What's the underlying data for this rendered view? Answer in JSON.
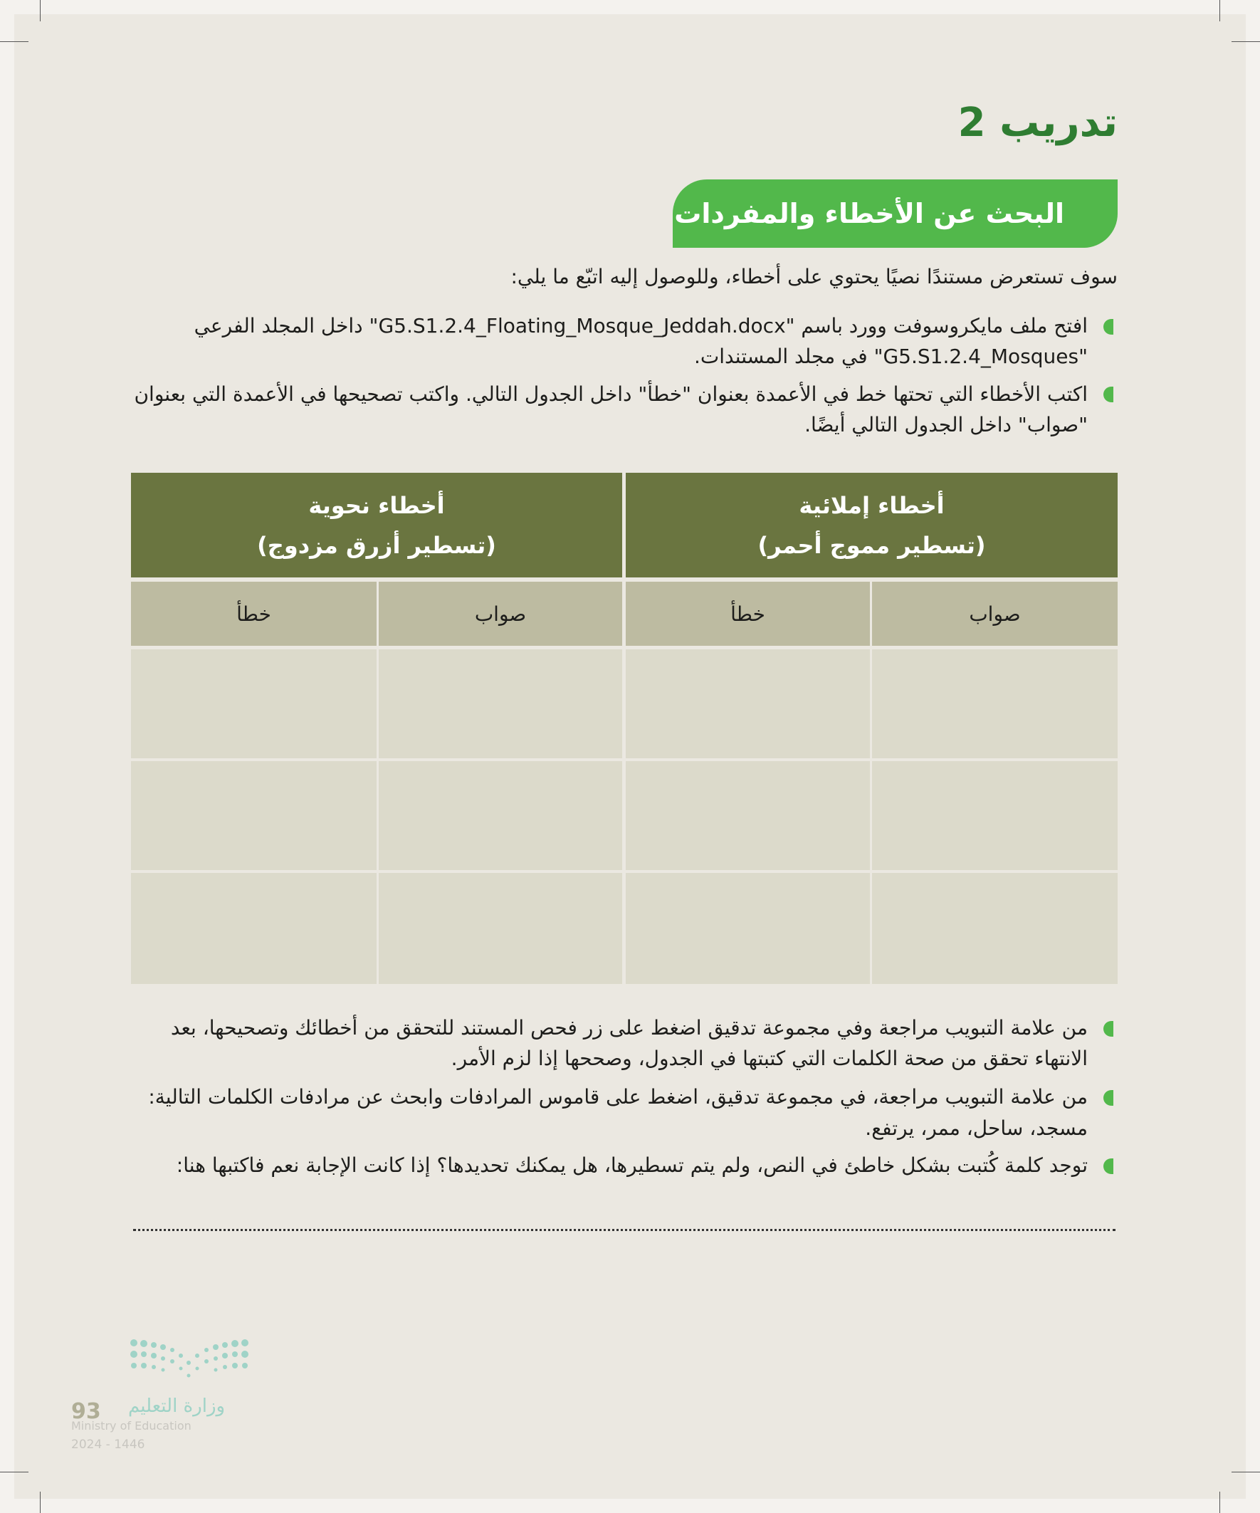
{
  "title": "تدريب 2",
  "banner": "البحث عن الأخطاء والمفردات",
  "intro": "سوف تستعرض مستندًا نصيًا يحتوي على أخطاء، وللوصول إليه اتبّع ما يلي:",
  "bullets_top": [
    {
      "line1": "افتح ملف مايكروسوفت وورد باسم \"G5.S1.2.4_Floating_Mosque_Jeddah.docx\" داخل المجلد الفرعي",
      "line2": "\"G5.S1.2.4_Mosques\" في مجلد المستندات."
    },
    {
      "line1": "اكتب الأخطاء التي تحتها خط في الأعمدة بعنوان \"خطأ\" داخل الجدول التالي. واكتب تصحيحها في الأعمدة التي بعنوان",
      "line2": "\"صواب\" داخل الجدول التالي أيضًا."
    }
  ],
  "table": {
    "groups": [
      {
        "title": "أخطاء إملائية",
        "subtitle": "(تسطير مموج أحمر)"
      },
      {
        "title": "أخطاء نحوية",
        "subtitle": "(تسطير أزرق مزدوج)"
      }
    ],
    "columns": [
      "صواب",
      "خطأ",
      "صواب",
      "خطأ"
    ],
    "rows": [
      [
        "",
        "",
        "",
        ""
      ],
      [
        "",
        "",
        "",
        ""
      ],
      [
        "",
        "",
        "",
        ""
      ]
    ]
  },
  "bullets_bottom": [
    {
      "line1": "من علامة التبويب مراجعة وفي مجموعة تدقيق اضغط على زر فحص المستند للتحقق من أخطائك وتصحيحها، بعد",
      "line2": "الانتهاء تحقق من صحة الكلمات التي كتبتها في الجدول، وصححها إذا لزم الأمر."
    },
    {
      "line1": "من علامة التبويب مراجعة، في مجموعة تدقيق، اضغط على قاموس المرادفات وابحث عن مرادفات الكلمات التالية:",
      "line2": "مسجد، ساحل، ممر، يرتفع."
    },
    {
      "line1": "توجد كلمة كُتبت بشكل خاطئ في النص، ولم يتم تسطيرها، هل يمكنك تحديدها؟ إذا كانت الإجابة نعم فاكتبها هنا:",
      "line2": ""
    }
  ],
  "footer": {
    "logo_ar": "وزارة التعليم",
    "logo_en": "Ministry of Education",
    "year": "2024 - 1446",
    "page_number": "93"
  },
  "colors": {
    "accent_green": "#52b84b",
    "title_green": "#2f7d32",
    "table_header": "#6a7540",
    "table_subheader": "#bdbba1",
    "table_cell": "#dcdacb"
  }
}
